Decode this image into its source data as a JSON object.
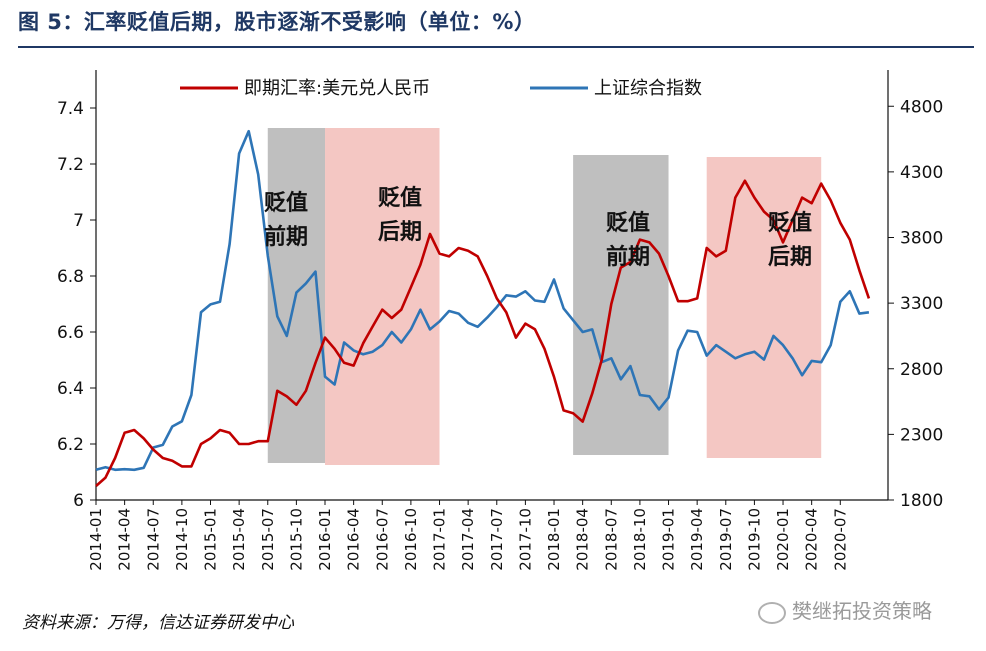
{
  "header": {
    "title": "图 5：汇率贬值后期，股市逐渐不受影响（单位：%）"
  },
  "footer": {
    "source": "资料来源：万得，信达证券研发中心",
    "watermark": "樊继拓投资策略"
  },
  "chart_data": {
    "type": "line",
    "title": "",
    "xlabel": "",
    "ylabel": "",
    "ylim": [
      6.0,
      7.5
    ],
    "y2lim": [
      1800,
      5000
    ],
    "yticks": [
      6,
      6.2,
      6.4,
      6.6,
      6.8,
      7,
      7.2,
      7.4
    ],
    "y2ticks": [
      1800,
      2300,
      2800,
      3300,
      3800,
      4300,
      4800
    ],
    "xlim": [
      "2014-01",
      "2020-12"
    ],
    "xticks": [
      "2014-01",
      "2014-04",
      "2014-07",
      "2014-10",
      "2015-01",
      "2015-04",
      "2015-07",
      "2015-10",
      "2016-01",
      "2016-04",
      "2016-07",
      "2016-10",
      "2017-01",
      "2017-04",
      "2017-07",
      "2017-10",
      "2018-01",
      "2018-04",
      "2018-07",
      "2018-10",
      "2019-01",
      "2019-04",
      "2019-07",
      "2019-10",
      "2020-01",
      "2020-04",
      "2020-07"
    ],
    "legend_position": "top",
    "grid": false,
    "series": [
      {
        "name": "即期汇率:美元兑人民币",
        "axis": "left",
        "color": "#c00000",
        "points": [
          [
            "2014-01",
            6.05
          ],
          [
            "2014-02",
            6.08
          ],
          [
            "2014-03",
            6.15
          ],
          [
            "2014-04",
            6.24
          ],
          [
            "2014-05",
            6.25
          ],
          [
            "2014-06",
            6.22
          ],
          [
            "2014-07",
            6.18
          ],
          [
            "2014-08",
            6.15
          ],
          [
            "2014-09",
            6.14
          ],
          [
            "2014-10",
            6.12
          ],
          [
            "2014-11",
            6.12
          ],
          [
            "2014-12",
            6.2
          ],
          [
            "2015-01",
            6.22
          ],
          [
            "2015-02",
            6.25
          ],
          [
            "2015-03",
            6.24
          ],
          [
            "2015-04",
            6.2
          ],
          [
            "2015-05",
            6.2
          ],
          [
            "2015-06",
            6.21
          ],
          [
            "2015-07",
            6.21
          ],
          [
            "2015-08",
            6.39
          ],
          [
            "2015-09",
            6.37
          ],
          [
            "2015-10",
            6.34
          ],
          [
            "2015-11",
            6.39
          ],
          [
            "2015-12",
            6.49
          ],
          [
            "2016-01",
            6.58
          ],
          [
            "2016-02",
            6.54
          ],
          [
            "2016-03",
            6.49
          ],
          [
            "2016-04",
            6.48
          ],
          [
            "2016-05",
            6.56
          ],
          [
            "2016-06",
            6.62
          ],
          [
            "2016-07",
            6.68
          ],
          [
            "2016-08",
            6.65
          ],
          [
            "2016-09",
            6.68
          ],
          [
            "2016-10",
            6.76
          ],
          [
            "2016-11",
            6.84
          ],
          [
            "2016-12",
            6.95
          ],
          [
            "2017-01",
            6.88
          ],
          [
            "2017-02",
            6.87
          ],
          [
            "2017-03",
            6.9
          ],
          [
            "2017-04",
            6.89
          ],
          [
            "2017-05",
            6.87
          ],
          [
            "2017-06",
            6.8
          ],
          [
            "2017-07",
            6.72
          ],
          [
            "2017-08",
            6.67
          ],
          [
            "2017-09",
            6.58
          ],
          [
            "2017-10",
            6.63
          ],
          [
            "2017-11",
            6.61
          ],
          [
            "2017-12",
            6.54
          ],
          [
            "2018-01",
            6.44
          ],
          [
            "2018-02",
            6.32
          ],
          [
            "2018-03",
            6.31
          ],
          [
            "2018-04",
            6.28
          ],
          [
            "2018-05",
            6.38
          ],
          [
            "2018-06",
            6.5
          ],
          [
            "2018-07",
            6.7
          ],
          [
            "2018-08",
            6.83
          ],
          [
            "2018-09",
            6.85
          ],
          [
            "2018-10",
            6.93
          ],
          [
            "2018-11",
            6.92
          ],
          [
            "2018-12",
            6.88
          ],
          [
            "2019-01",
            6.8
          ],
          [
            "2019-02",
            6.71
          ],
          [
            "2019-03",
            6.71
          ],
          [
            "2019-04",
            6.72
          ],
          [
            "2019-05",
            6.9
          ],
          [
            "2019-06",
            6.87
          ],
          [
            "2019-07",
            6.89
          ],
          [
            "2019-08",
            7.08
          ],
          [
            "2019-09",
            7.14
          ],
          [
            "2019-10",
            7.08
          ],
          [
            "2019-11",
            7.03
          ],
          [
            "2019-12",
            7.0
          ],
          [
            "2020-01",
            6.92
          ],
          [
            "2020-02",
            7.0
          ],
          [
            "2020-03",
            7.08
          ],
          [
            "2020-04",
            7.06
          ],
          [
            "2020-05",
            7.13
          ],
          [
            "2020-06",
            7.07
          ],
          [
            "2020-07",
            6.99
          ],
          [
            "2020-08",
            6.93
          ],
          [
            "2020-09",
            6.82
          ],
          [
            "2020-10",
            6.72
          ]
        ]
      },
      {
        "name": "上证综合指数",
        "axis": "right",
        "color": "#2e75b6",
        "points": [
          [
            "2014-01",
            2030
          ],
          [
            "2014-02",
            2050
          ],
          [
            "2014-03",
            2030
          ],
          [
            "2014-04",
            2035
          ],
          [
            "2014-05",
            2030
          ],
          [
            "2014-06",
            2045
          ],
          [
            "2014-07",
            2200
          ],
          [
            "2014-08",
            2220
          ],
          [
            "2014-09",
            2360
          ],
          [
            "2014-10",
            2400
          ],
          [
            "2014-11",
            2600
          ],
          [
            "2014-12",
            3230
          ],
          [
            "2015-01",
            3290
          ],
          [
            "2015-02",
            3310
          ],
          [
            "2015-03",
            3750
          ],
          [
            "2015-04",
            4440
          ],
          [
            "2015-05",
            4610
          ],
          [
            "2015-06",
            4280
          ],
          [
            "2015-07",
            3660
          ],
          [
            "2015-08",
            3200
          ],
          [
            "2015-09",
            3050
          ],
          [
            "2015-10",
            3380
          ],
          [
            "2015-11",
            3450
          ],
          [
            "2015-12",
            3540
          ],
          [
            "2016-01",
            2740
          ],
          [
            "2016-02",
            2680
          ],
          [
            "2016-03",
            3000
          ],
          [
            "2016-04",
            2940
          ],
          [
            "2016-05",
            2910
          ],
          [
            "2016-06",
            2930
          ],
          [
            "2016-07",
            2980
          ],
          [
            "2016-08",
            3080
          ],
          [
            "2016-09",
            3000
          ],
          [
            "2016-10",
            3100
          ],
          [
            "2016-11",
            3250
          ],
          [
            "2016-12",
            3100
          ],
          [
            "2017-01",
            3160
          ],
          [
            "2017-02",
            3240
          ],
          [
            "2017-03",
            3220
          ],
          [
            "2017-04",
            3150
          ],
          [
            "2017-05",
            3120
          ],
          [
            "2017-06",
            3190
          ],
          [
            "2017-07",
            3270
          ],
          [
            "2017-08",
            3360
          ],
          [
            "2017-09",
            3350
          ],
          [
            "2017-10",
            3390
          ],
          [
            "2017-11",
            3320
          ],
          [
            "2017-12",
            3310
          ],
          [
            "2018-01",
            3480
          ],
          [
            "2018-02",
            3260
          ],
          [
            "2018-03",
            3170
          ],
          [
            "2018-04",
            3080
          ],
          [
            "2018-05",
            3100
          ],
          [
            "2018-06",
            2850
          ],
          [
            "2018-07",
            2880
          ],
          [
            "2018-08",
            2720
          ],
          [
            "2018-09",
            2820
          ],
          [
            "2018-10",
            2600
          ],
          [
            "2018-11",
            2590
          ],
          [
            "2018-12",
            2490
          ],
          [
            "2019-01",
            2580
          ],
          [
            "2019-02",
            2940
          ],
          [
            "2019-03",
            3090
          ],
          [
            "2019-04",
            3080
          ],
          [
            "2019-05",
            2900
          ],
          [
            "2019-06",
            2980
          ],
          [
            "2019-07",
            2930
          ],
          [
            "2019-08",
            2880
          ],
          [
            "2019-09",
            2910
          ],
          [
            "2019-10",
            2930
          ],
          [
            "2019-11",
            2870
          ],
          [
            "2019-12",
            3050
          ],
          [
            "2020-01",
            2980
          ],
          [
            "2020-02",
            2880
          ],
          [
            "2020-03",
            2750
          ],
          [
            "2020-04",
            2860
          ],
          [
            "2020-05",
            2850
          ],
          [
            "2020-06",
            2980
          ],
          [
            "2020-07",
            3310
          ],
          [
            "2020-08",
            3390
          ],
          [
            "2020-09",
            3220
          ],
          [
            "2020-10",
            3230
          ]
        ]
      }
    ],
    "annotations": [
      {
        "label": "贬值前期",
        "start": "2015-07",
        "end": "2016-01",
        "color": "#bfbfbf"
      },
      {
        "label": "贬值后期",
        "start": "2016-01",
        "end": "2017-01",
        "color": "#f4c7c3"
      },
      {
        "label": "贬值前期",
        "start": "2018-03",
        "end": "2019-01",
        "color": "#bfbfbf"
      },
      {
        "label": "贬值后期",
        "start": "2019-05",
        "end": "2020-05",
        "color": "#f4c7c3"
      }
    ]
  }
}
